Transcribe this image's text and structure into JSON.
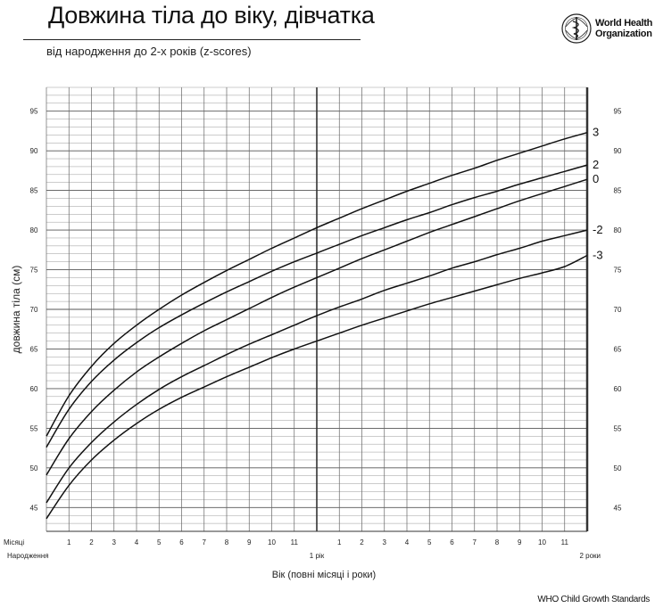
{
  "header": {
    "title": "Довжина тіла до віку, дівчатка",
    "subtitle": "від народження до 2-х років (z-scores)",
    "org_line1": "World Health",
    "org_line2": "Organization"
  },
  "footer": "WHO Child Growth Standards",
  "chart_data": {
    "type": "line",
    "title": "Довжина тіла до віку, дівчатка",
    "subtitle": "від народження до 2-х років (z-scores)",
    "ylabel": "довжина тіла (см)",
    "xlabel": "Вік (повні місяці і роки)",
    "xlim": [
      0,
      24
    ],
    "ylim": [
      42,
      98
    ],
    "x_unit_label": "Місяці",
    "x_month_ticks": [
      "1",
      "2",
      "3",
      "4",
      "5",
      "6",
      "7",
      "8",
      "9",
      "10",
      "11",
      "",
      "1",
      "2",
      "3",
      "4",
      "5",
      "6",
      "7",
      "8",
      "9",
      "10",
      "11"
    ],
    "x_year_labels": [
      {
        "x": 0,
        "label": "Народження"
      },
      {
        "x": 12,
        "label": "1 рік"
      },
      {
        "x": 24,
        "label": "2 роки"
      }
    ],
    "y_ticks": [
      45,
      50,
      55,
      60,
      65,
      70,
      75,
      80,
      85,
      90,
      95
    ],
    "grid": true,
    "x": [
      0,
      1,
      2,
      3,
      4,
      5,
      6,
      7,
      8,
      9,
      10,
      11,
      12,
      13,
      14,
      15,
      16,
      17,
      18,
      19,
      20,
      21,
      22,
      23,
      24
    ],
    "series": [
      {
        "name": "3",
        "values": [
          54.0,
          59.1,
          62.8,
          65.7,
          68.0,
          70.0,
          71.8,
          73.4,
          74.9,
          76.3,
          77.7,
          79.0,
          80.3,
          81.5,
          82.7,
          83.8,
          84.9,
          85.9,
          86.9,
          87.8,
          88.8,
          89.7,
          90.6,
          91.5,
          92.3
        ]
      },
      {
        "name": "2",
        "values": [
          52.6,
          57.4,
          60.9,
          63.6,
          65.8,
          67.7,
          69.3,
          70.8,
          72.2,
          73.5,
          74.8,
          76.0,
          77.1,
          78.2,
          79.3,
          80.3,
          81.3,
          82.2,
          83.2,
          84.1,
          84.9,
          85.8,
          86.6,
          87.4,
          88.2
        ]
      },
      {
        "name": "0",
        "values": [
          49.1,
          53.7,
          57.1,
          59.8,
          62.1,
          64.0,
          65.7,
          67.3,
          68.7,
          70.1,
          71.5,
          72.8,
          74.0,
          75.2,
          76.4,
          77.5,
          78.6,
          79.7,
          80.7,
          81.7,
          82.7,
          83.7,
          84.6,
          85.5,
          86.4
        ]
      },
      {
        "name": "-2",
        "values": [
          45.6,
          50.0,
          53.2,
          55.8,
          58.0,
          59.9,
          61.5,
          62.9,
          64.3,
          65.6,
          66.8,
          68.0,
          69.2,
          70.3,
          71.3,
          72.4,
          73.3,
          74.2,
          75.2,
          76.0,
          76.9,
          77.7,
          78.6,
          79.3,
          80.0
        ]
      },
      {
        "name": "-3",
        "values": [
          43.6,
          47.8,
          51.0,
          53.5,
          55.6,
          57.4,
          58.9,
          60.2,
          61.5,
          62.7,
          63.9,
          65.0,
          66.0,
          67.0,
          68.0,
          68.9,
          69.8,
          70.7,
          71.5,
          72.3,
          73.1,
          73.9,
          74.6,
          75.4,
          76.8
        ]
      }
    ]
  }
}
